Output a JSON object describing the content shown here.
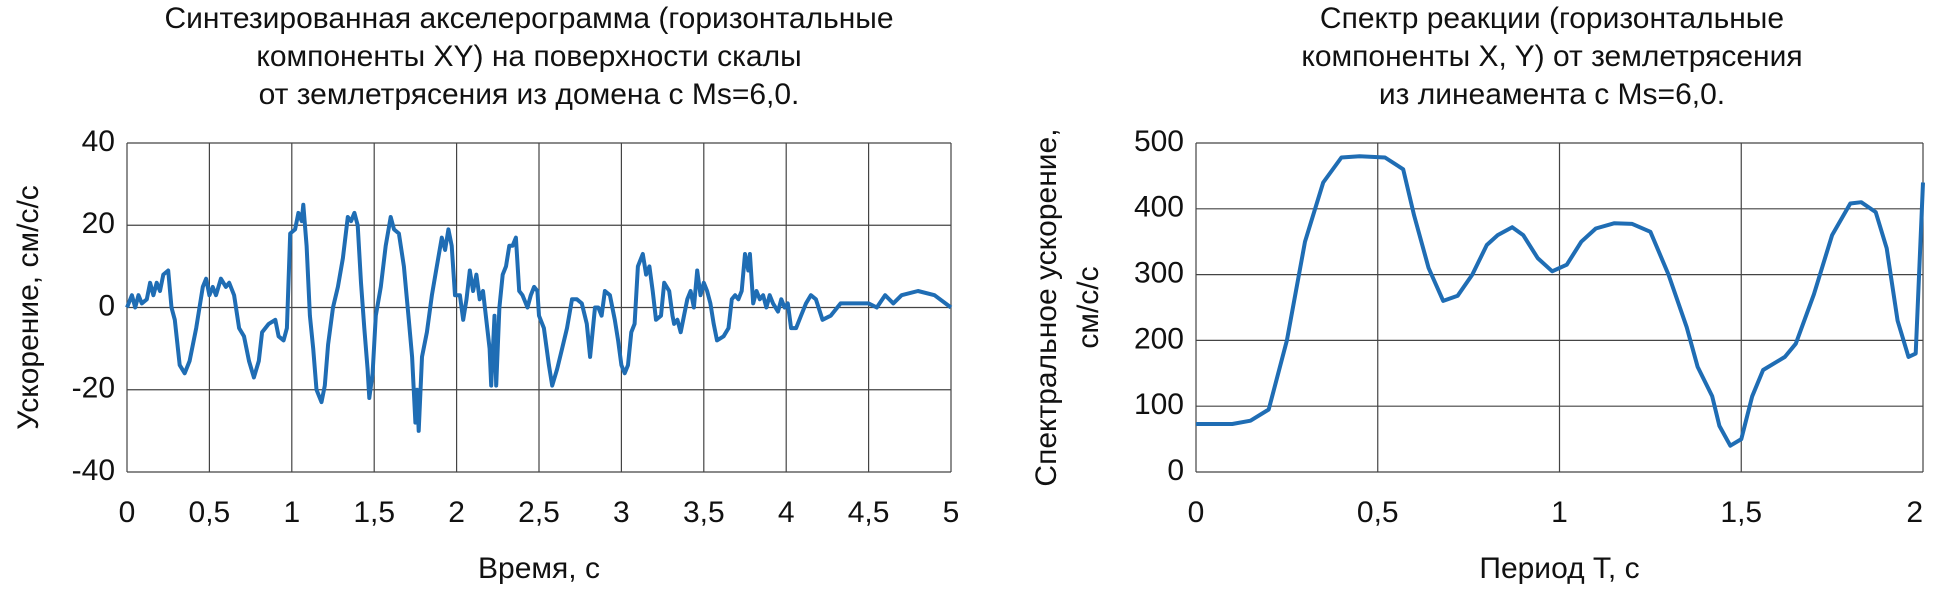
{
  "chart_data": [
    {
      "type": "line",
      "title": [
        "Синтезированная акселерограмма (горизонтальные",
        "компоненты XY) на поверхности скалы",
        "от землетрясения из домена с Ms=6,0."
      ],
      "x_label": "Время, с",
      "y_label": [
        "Ускорение, см/с/с"
      ],
      "xlim": [
        0,
        5
      ],
      "xticks": [
        0,
        {
          "value": 0.5,
          "label": "0,5"
        },
        1,
        {
          "value": 1.5,
          "label": "1,5"
        },
        2,
        {
          "value": 2.5,
          "label": "2,5"
        },
        3,
        {
          "value": 3.5,
          "label": "3,5"
        },
        4,
        {
          "value": 4.5,
          "label": "4,5"
        },
        5
      ],
      "ylim": [
        -40,
        40
      ],
      "yticks": [
        -40,
        -20,
        0,
        20,
        40
      ],
      "grid": true,
      "x": [
        0,
        0.03,
        0.05,
        0.07,
        0.09,
        0.12,
        0.14,
        0.16,
        0.18,
        0.2,
        0.22,
        0.25,
        0.27,
        0.29,
        0.32,
        0.35,
        0.38,
        0.42,
        0.46,
        0.48,
        0.5,
        0.52,
        0.54,
        0.57,
        0.6,
        0.62,
        0.65,
        0.68,
        0.71,
        0.74,
        0.77,
        0.8,
        0.82,
        0.86,
        0.9,
        0.92,
        0.95,
        0.97,
        0.99,
        1.02,
        1.04,
        1.06,
        1.07,
        1.09,
        1.11,
        1.13,
        1.15,
        1.18,
        1.2,
        1.22,
        1.25,
        1.28,
        1.31,
        1.34,
        1.36,
        1.38,
        1.4,
        1.42,
        1.44,
        1.46,
        1.47,
        1.49,
        1.51,
        1.54,
        1.57,
        1.6,
        1.62,
        1.65,
        1.68,
        1.71,
        1.73,
        1.75,
        1.76,
        1.77,
        1.79,
        1.82,
        1.85,
        1.88,
        1.91,
        1.93,
        1.95,
        1.97,
        1.99,
        2.02,
        2.04,
        2.06,
        2.08,
        2.1,
        2.12,
        2.14,
        2.16,
        2.18,
        2.2,
        2.21,
        2.23,
        2.24,
        2.26,
        2.28,
        2.3,
        2.32,
        2.34,
        2.36,
        2.38,
        2.4,
        2.43,
        2.45,
        2.47,
        2.49,
        2.5,
        2.53,
        2.56,
        2.58,
        2.61,
        2.64,
        2.67,
        2.7,
        2.73,
        2.76,
        2.79,
        2.81,
        2.84,
        2.86,
        2.88,
        2.9,
        2.93,
        2.96,
        2.98,
        3.0,
        3.02,
        3.04,
        3.06,
        3.08,
        3.1,
        3.11,
        3.13,
        3.15,
        3.17,
        3.19,
        3.21,
        3.24,
        3.26,
        3.29,
        3.31,
        3.32,
        3.34,
        3.36,
        3.38,
        3.4,
        3.42,
        3.44,
        3.46,
        3.48,
        3.5,
        3.52,
        3.54,
        3.56,
        3.58,
        3.62,
        3.65,
        3.67,
        3.69,
        3.71,
        3.73,
        3.75,
        3.77,
        3.78,
        3.8,
        3.82,
        3.84,
        3.86,
        3.88,
        3.9,
        3.92,
        3.95,
        3.97,
        3.99,
        4.01,
        4.03,
        4.06,
        4.09,
        4.12,
        4.15,
        4.18,
        4.22,
        4.27,
        4.33,
        4.4,
        4.5,
        4.55,
        4.6,
        4.65,
        4.7,
        4.8,
        4.9,
        5.0
      ],
      "series": [
        {
          "color": "#1f6db4",
          "values": [
            0,
            3,
            0,
            3,
            1,
            2,
            6,
            3,
            6,
            4,
            8,
            9,
            0,
            -3,
            -14,
            -16,
            -13,
            -5,
            5,
            7,
            3,
            5,
            3,
            7,
            5,
            6,
            3,
            -5,
            -7,
            -13,
            -17,
            -13,
            -6,
            -4,
            -3,
            -7,
            -8,
            -5,
            18,
            19,
            23,
            21,
            25,
            15,
            -2,
            -10,
            -20,
            -23,
            -19,
            -9,
            0,
            5,
            12,
            22,
            21,
            23,
            20,
            6,
            -5,
            -15,
            -22,
            -16,
            -2,
            5,
            15,
            22,
            19,
            18,
            10,
            -3,
            -12,
            -28,
            -20,
            -30,
            -12,
            -6,
            3,
            10,
            17,
            14,
            19,
            15,
            3,
            3,
            -3,
            2,
            9,
            4,
            8,
            2,
            4,
            -3,
            -10,
            -19,
            -2,
            -19,
            0,
            8,
            10,
            15,
            15,
            17,
            4,
            3,
            0,
            3,
            5,
            4,
            -2,
            -5,
            -14,
            -19,
            -15,
            -10,
            -5,
            2,
            2,
            1,
            -4,
            -12,
            0,
            0,
            -2,
            4,
            3,
            -3,
            -8,
            -14,
            -16,
            -14,
            -6,
            -4,
            10,
            11,
            13,
            8,
            10,
            4,
            -3,
            -2,
            6,
            4,
            -2,
            -4,
            -3,
            -6,
            -2,
            2,
            4,
            0,
            9,
            3,
            6,
            4,
            1,
            -4,
            -8,
            -7,
            -5,
            2,
            3,
            2,
            4,
            13,
            9,
            13,
            1,
            4,
            2,
            3,
            0,
            3,
            1,
            -1,
            2,
            0,
            1,
            -5,
            -5,
            -2,
            1,
            3,
            2,
            -3,
            -2,
            1,
            1,
            1,
            0,
            3,
            1,
            3,
            4,
            3,
            0
          ]
        }
      ]
    },
    {
      "type": "line",
      "title": [
        "Спектр реакции (горизонтальные",
        "компоненты X, Y) от землетрясения",
        "из линеамента с Ms=6,0."
      ],
      "x_label": "Период T, с",
      "y_label": [
        "Спектральное ускорение,",
        "см/с/с"
      ],
      "xlim": [
        0,
        2
      ],
      "xticks": [
        0,
        {
          "value": 0.5,
          "label": "0,5"
        },
        1,
        {
          "value": 1.5,
          "label": "1,5"
        },
        2
      ],
      "ylim": [
        0,
        500
      ],
      "yticks": [
        0,
        100,
        200,
        300,
        400,
        500
      ],
      "grid": true,
      "x": [
        0,
        0.1,
        0.15,
        0.2,
        0.25,
        0.3,
        0.35,
        0.4,
        0.45,
        0.52,
        0.57,
        0.6,
        0.64,
        0.68,
        0.72,
        0.76,
        0.8,
        0.83,
        0.87,
        0.9,
        0.94,
        0.98,
        1.02,
        1.06,
        1.1,
        1.15,
        1.2,
        1.25,
        1.3,
        1.35,
        1.38,
        1.42,
        1.44,
        1.47,
        1.5,
        1.53,
        1.56,
        1.62,
        1.65,
        1.7,
        1.75,
        1.8,
        1.83,
        1.87,
        1.9,
        1.93,
        1.96,
        1.98,
        2.0
      ],
      "series": [
        {
          "color": "#1f6db4",
          "values": [
            73,
            73,
            78,
            95,
            200,
            350,
            440,
            478,
            480,
            478,
            460,
            390,
            310,
            260,
            268,
            300,
            345,
            360,
            372,
            360,
            325,
            305,
            315,
            350,
            370,
            378,
            377,
            365,
            300,
            220,
            160,
            115,
            70,
            40,
            50,
            115,
            155,
            175,
            195,
            270,
            360,
            408,
            410,
            395,
            340,
            230,
            175,
            180,
            440
          ]
        }
      ]
    }
  ]
}
